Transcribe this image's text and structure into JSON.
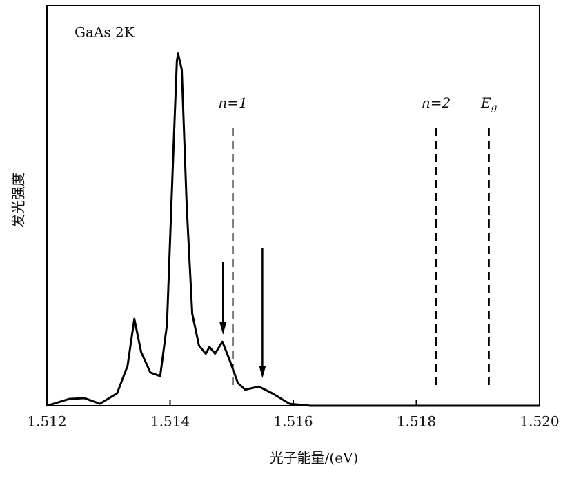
{
  "chart_data": {
    "type": "line",
    "title": "GaAs  2K",
    "x_label": "光子能量/(eV)",
    "y_label": "发光强度",
    "series": [
      {
        "color": "#000000",
        "x": [
          1.512,
          1.51236,
          1.51261,
          1.51286,
          1.51314,
          1.51331,
          1.51342,
          1.51353,
          1.51368,
          1.51384,
          1.51395,
          1.51404,
          1.51411,
          1.51413,
          1.51419,
          1.51427,
          1.51436,
          1.51447,
          1.51458,
          1.51464,
          1.51473,
          1.51485,
          1.51496,
          1.5151,
          1.51522,
          1.51544,
          1.51566,
          1.51594,
          1.51628,
          1.52
        ],
        "values": [
          0,
          1.7,
          1.9,
          0.5,
          3.1,
          10,
          21.7,
          13.4,
          8.3,
          7.4,
          20.3,
          58,
          86,
          88,
          84,
          50,
          23,
          15,
          13,
          14.7,
          13,
          16,
          11.7,
          5.7,
          4,
          4.8,
          3.1,
          0.5,
          0,
          0
        ]
      }
    ],
    "xlim": [
      1.512,
      1.52
    ],
    "ylim": [
      0,
      100
    ],
    "xticks": [
      1.512,
      1.514,
      1.516,
      1.518,
      {
        "value": 1.52,
        "label": "1.520"
      }
    ],
    "reference_lines": [
      {
        "x": 1.51502,
        "label": "n=1"
      },
      {
        "x": 1.51832,
        "label": "n=2"
      },
      {
        "x": 1.51918,
        "label": "E",
        "subscript": "g"
      }
    ],
    "arrows": [
      {
        "x": 1.51486
      },
      {
        "x": 1.5155
      }
    ]
  }
}
